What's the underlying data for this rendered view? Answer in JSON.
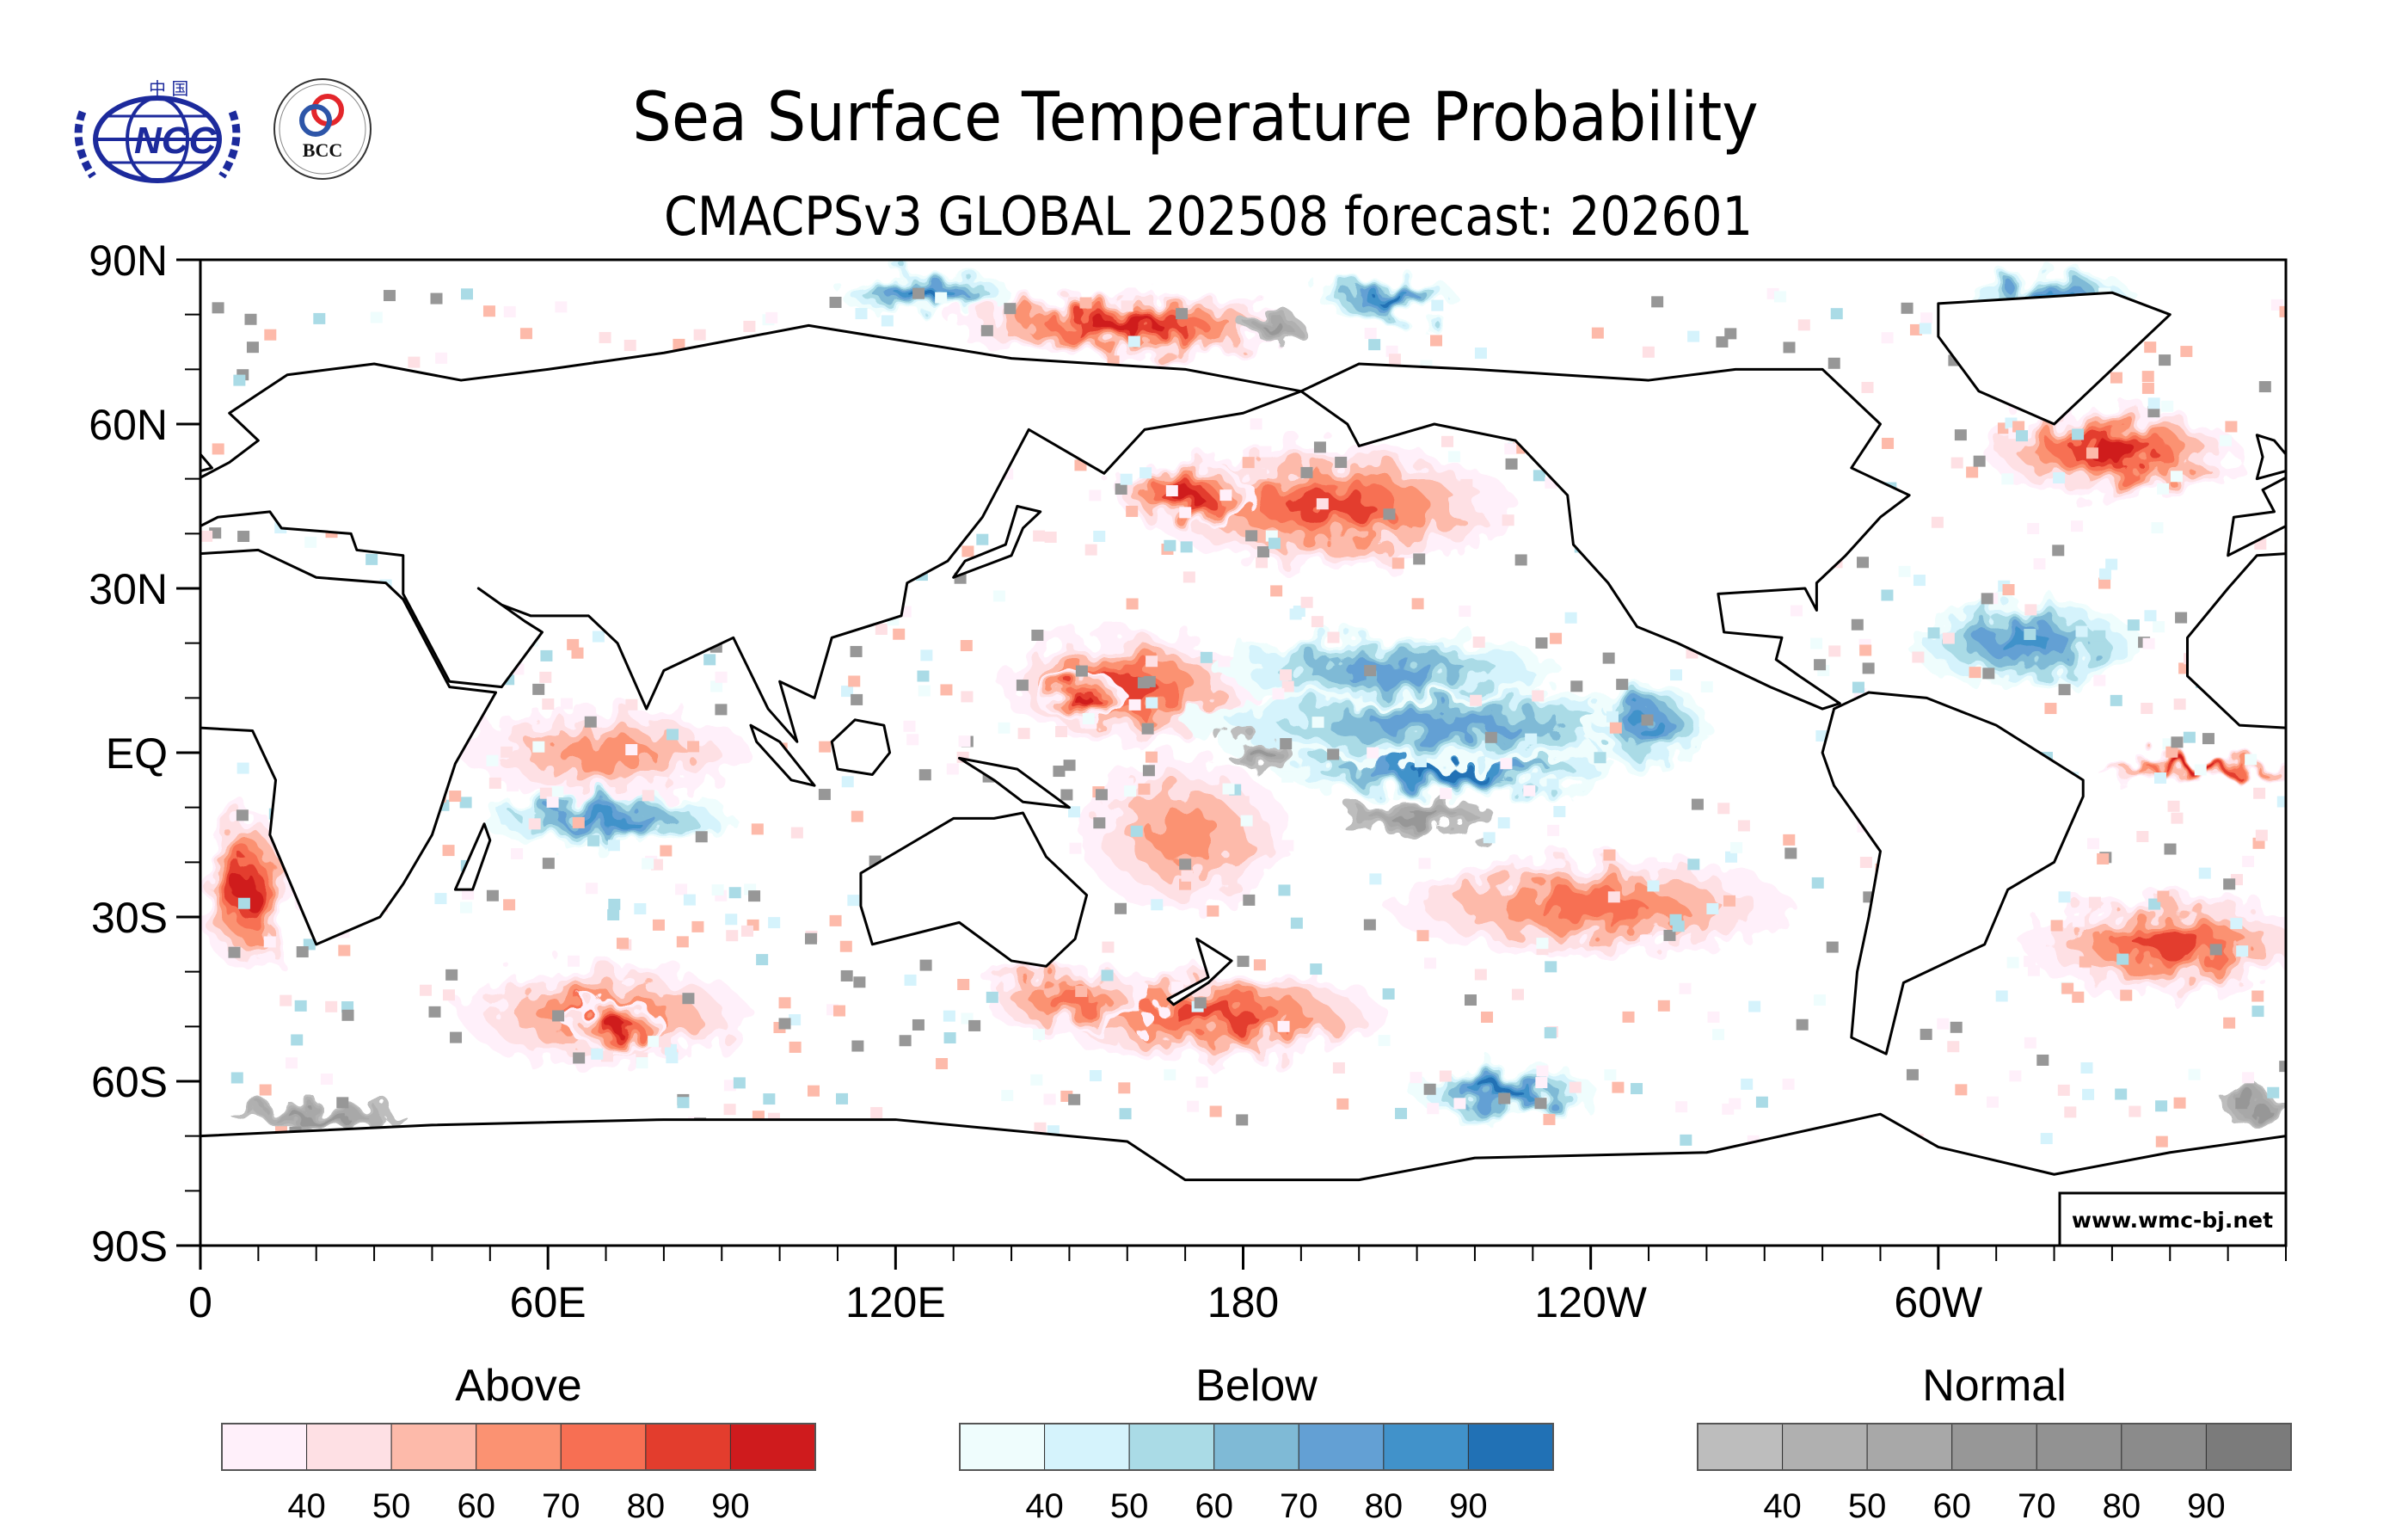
{
  "header": {
    "title": "Sea Surface Temperature Probability",
    "subtitle": "CMACPSv3 GLOBAL 202508 forecast: 202601",
    "logos": [
      {
        "name": "ncc-logo",
        "text": "NCC",
        "top_text": "中 国"
      },
      {
        "name": "bcc-logo",
        "text": "BCC",
        "ring_text": "BEIJING CLIMATE CENTER"
      }
    ]
  },
  "credit": "www.wmc-bj.net",
  "colors": {
    "above": [
      "#fff0fa",
      "#fee0e4",
      "#fdbaaa",
      "#fb9272",
      "#f76f53",
      "#e33d2d",
      "#cf1b1d"
    ],
    "below": [
      "#effdfd",
      "#d5f3fc",
      "#aadbe6",
      "#7fbad6",
      "#63a0d4",
      "#4192ca",
      "#2171b5"
    ],
    "normal": [
      "#bdbdbd",
      "#b0b0b0",
      "#a8a8a8",
      "#979797",
      "#929292",
      "#8b8b8b",
      "#7b7b7b"
    ],
    "land_outline": "#000000"
  },
  "chart_data": {
    "type": "heatmap",
    "title": "Sea Surface Temperature Probability",
    "subtitle": "CMACPSv3 GLOBAL 202508 forecast: 202601",
    "projection": "cylindrical-equidistant",
    "x_range": [
      0,
      360
    ],
    "y_range": [
      -90,
      90
    ],
    "x_ticks": [
      {
        "value": 0,
        "label": "0"
      },
      {
        "value": 60,
        "label": "60E"
      },
      {
        "value": 120,
        "label": "120E"
      },
      {
        "value": 180,
        "label": "180"
      },
      {
        "value": 240,
        "label": "120W"
      },
      {
        "value": 300,
        "label": "60W"
      }
    ],
    "y_ticks": [
      {
        "value": 90,
        "label": "90N"
      },
      {
        "value": 60,
        "label": "60N"
      },
      {
        "value": 30,
        "label": "30N"
      },
      {
        "value": 0,
        "label": "EQ"
      },
      {
        "value": -30,
        "label": "30S"
      },
      {
        "value": -60,
        "label": "60S"
      },
      {
        "value": -90,
        "label": "90S"
      }
    ],
    "minor_tick_interval_deg": 10,
    "legends": [
      {
        "category": "Above",
        "label": "Above",
        "ticks": [
          "40",
          "50",
          "60",
          "70",
          "80",
          "90"
        ],
        "bins": [
          [
            33,
            40
          ],
          [
            40,
            50
          ],
          [
            50,
            60
          ],
          [
            60,
            70
          ],
          [
            70,
            80
          ],
          [
            80,
            90
          ],
          [
            90,
            100
          ]
        ]
      },
      {
        "category": "Below",
        "label": "Below",
        "ticks": [
          "40",
          "50",
          "60",
          "70",
          "80",
          "90"
        ],
        "bins": [
          [
            33,
            40
          ],
          [
            40,
            50
          ],
          [
            50,
            60
          ],
          [
            60,
            70
          ],
          [
            70,
            80
          ],
          [
            80,
            90
          ],
          [
            90,
            100
          ]
        ]
      },
      {
        "category": "Normal",
        "label": "Normal",
        "ticks": [
          "40",
          "50",
          "60",
          "70",
          "80",
          "90"
        ],
        "bins": [
          [
            33,
            40
          ],
          [
            40,
            50
          ],
          [
            50,
            60
          ],
          [
            60,
            70
          ],
          [
            70,
            80
          ],
          [
            80,
            90
          ],
          [
            90,
            100
          ]
        ]
      }
    ],
    "regions": [
      {
        "name": "north-pacific-warm",
        "category": "Above",
        "lon": 195,
        "lat": 45,
        "rlon": 32,
        "rlat": 11,
        "level": 6
      },
      {
        "name": "north-pacific-warm-core",
        "category": "Above",
        "lon": 170,
        "lat": 47,
        "rlon": 12,
        "rlat": 6,
        "level": 7
      },
      {
        "name": "west-pacific-warm",
        "category": "Above",
        "lon": 160,
        "lat": 12,
        "rlon": 22,
        "rlat": 10,
        "level": 6
      },
      {
        "name": "west-pacific-warm-core",
        "category": "Above",
        "lon": 152,
        "lat": 10,
        "rlon": 8,
        "rlat": 4,
        "level": 7
      },
      {
        "name": "southwest-pacific-warm",
        "category": "Above",
        "lon": 170,
        "lat": -15,
        "rlon": 18,
        "rlat": 14,
        "level": 4
      },
      {
        "name": "southeast-pacific-warm",
        "category": "Above",
        "lon": 240,
        "lat": -28,
        "rlon": 35,
        "rlat": 9,
        "level": 5
      },
      {
        "name": "south-pacific-warm",
        "category": "Above",
        "lon": 175,
        "lat": -48,
        "rlon": 30,
        "rlat": 8,
        "level": 6
      },
      {
        "name": "tasman-warm",
        "category": "Above",
        "lon": 150,
        "lat": -45,
        "rlon": 15,
        "rlat": 6,
        "level": 5
      },
      {
        "name": "equatorial-pacific-cold",
        "category": "Below",
        "lon": 215,
        "lat": -3,
        "rlon": 30,
        "rlat": 5,
        "level": 7
      },
      {
        "name": "central-pacific-cold",
        "category": "Below",
        "lon": 215,
        "lat": 5,
        "rlon": 45,
        "rlat": 7,
        "level": 5
      },
      {
        "name": "north-tropical-pacific-cold",
        "category": "Below",
        "lon": 205,
        "lat": 15,
        "rlon": 30,
        "rlat": 6,
        "level": 5
      },
      {
        "name": "ne-pacific-cold",
        "category": "Below",
        "lon": 250,
        "lat": 5,
        "rlon": 10,
        "rlat": 8,
        "level": 6
      },
      {
        "name": "south-indian-cold",
        "category": "Below",
        "lon": 70,
        "lat": -12,
        "rlon": 22,
        "rlat": 5,
        "level": 6
      },
      {
        "name": "indian-warm",
        "category": "Above",
        "lon": 70,
        "lat": 0,
        "rlon": 25,
        "rlat": 8,
        "level": 4
      },
      {
        "name": "south-indian-warm",
        "category": "Above",
        "lon": 70,
        "lat": -48,
        "rlon": 25,
        "rlat": 9,
        "level": 5
      },
      {
        "name": "kerguelen-warm-core",
        "category": "Above",
        "lon": 72,
        "lat": -50,
        "rlon": 8,
        "rlat": 5,
        "level": 7
      },
      {
        "name": "benguela-warm",
        "category": "Above",
        "lon": 8,
        "lat": -25,
        "rlon": 8,
        "rlat": 15,
        "level": 7
      },
      {
        "name": "north-atlantic-cold",
        "category": "Below",
        "lon": 315,
        "lat": 20,
        "rlon": 20,
        "rlat": 8,
        "level": 6
      },
      {
        "name": "north-atlantic-warm",
        "category": "Above",
        "lon": 330,
        "lat": 55,
        "rlon": 22,
        "rlat": 8,
        "level": 7
      },
      {
        "name": "south-atlantic-warm",
        "category": "Above",
        "lon": 340,
        "lat": -35,
        "rlon": 25,
        "rlat": 9,
        "level": 6
      },
      {
        "name": "tropical-atlantic-warm-band",
        "category": "Above",
        "lon": 345,
        "lat": -3,
        "rlon": 18,
        "rlat": 2,
        "level": 7
      },
      {
        "name": "arctic-warm",
        "category": "Above",
        "lon": 160,
        "lat": 78,
        "rlon": 30,
        "rlat": 6,
        "level": 7
      },
      {
        "name": "arctic-cold",
        "category": "Below",
        "lon": 125,
        "lat": 84,
        "rlon": 15,
        "rlat": 4,
        "level": 7
      },
      {
        "name": "arctic-cold-2",
        "category": "Below",
        "lon": 205,
        "lat": 83,
        "rlon": 12,
        "rlat": 4,
        "level": 7
      },
      {
        "name": "greenland-cold",
        "category": "Below",
        "lon": 320,
        "lat": 82,
        "rlon": 15,
        "rlat": 6,
        "level": 7
      },
      {
        "name": "amundsen-cold",
        "category": "Below",
        "lon": 225,
        "lat": -62,
        "rlon": 16,
        "rlat": 5,
        "level": 7
      },
      {
        "name": "southern-ocean-normal",
        "category": "Normal",
        "lon": 20,
        "lat": -66,
        "rlon": 15,
        "rlat": 2,
        "level": 4
      },
      {
        "name": "eq-pacific-normal",
        "category": "Normal",
        "lon": 210,
        "lat": -12,
        "rlon": 14,
        "rlat": 3,
        "level": 4
      },
      {
        "name": "pacific-normal-2",
        "category": "Normal",
        "lon": 183,
        "lat": 0,
        "rlon": 6,
        "rlat": 3,
        "level": 4
      },
      {
        "name": "south-atlantic-normal",
        "category": "Normal",
        "lon": 355,
        "lat": -65,
        "rlon": 6,
        "rlat": 3,
        "level": 4
      },
      {
        "name": "arctic-normal",
        "category": "Normal",
        "lon": 185,
        "lat": 78,
        "rlon": 5,
        "rlat": 3,
        "level": 4
      }
    ]
  }
}
